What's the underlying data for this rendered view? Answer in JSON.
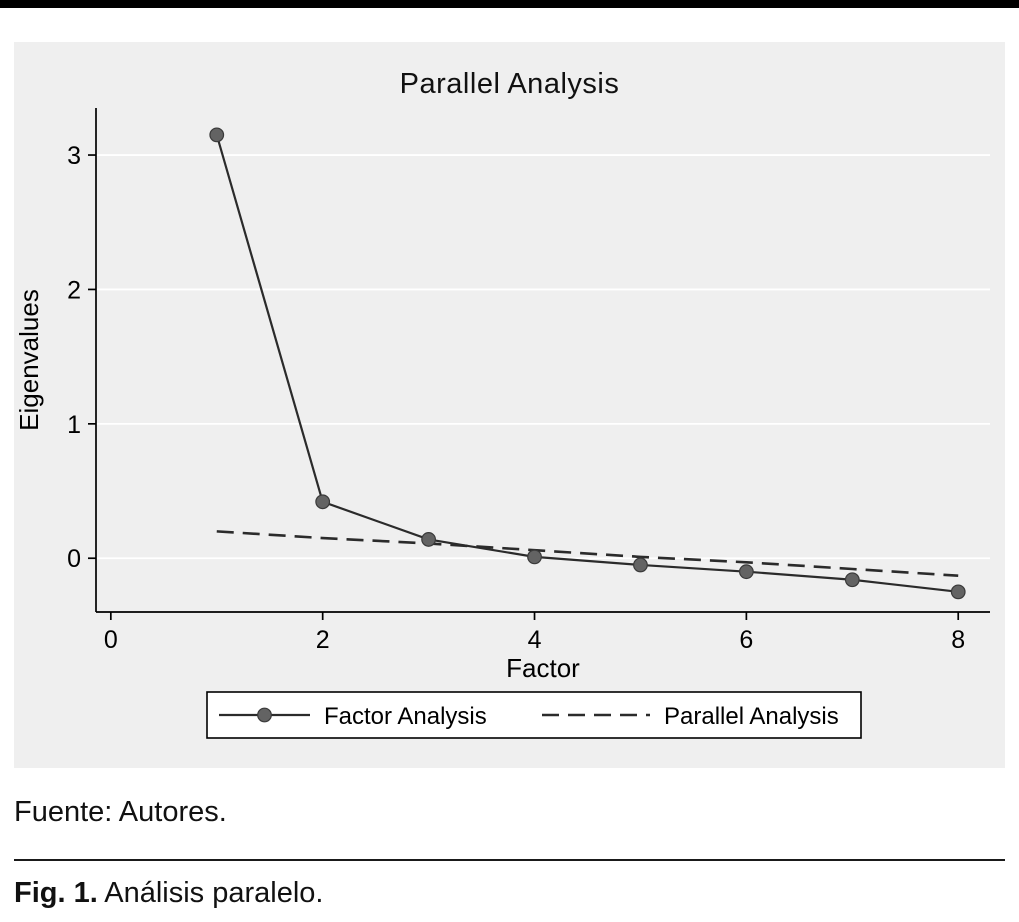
{
  "figure": {
    "source_note": "Fuente: Autores.",
    "fig_label": "Fig. 1.",
    "fig_caption": " Análisis paralelo."
  },
  "chart_data": {
    "type": "line",
    "title": "Parallel Analysis",
    "xlabel": "Factor",
    "ylabel": "Eigenvalues",
    "x": [
      1,
      2,
      3,
      4,
      5,
      6,
      7,
      8
    ],
    "series": [
      {
        "name": "Factor Analysis",
        "line": "solid",
        "marker": "circle",
        "values": [
          3.15,
          0.42,
          0.14,
          0.01,
          -0.05,
          -0.1,
          -0.16,
          -0.25
        ]
      },
      {
        "name": "Parallel Analysis",
        "line": "dashed",
        "marker": "none",
        "values": [
          0.2,
          0.15,
          0.11,
          0.06,
          0.01,
          -0.03,
          -0.08,
          -0.13
        ]
      }
    ],
    "xticks": [
      0,
      2,
      4,
      6,
      8
    ],
    "yticks": [
      0,
      1,
      2,
      3
    ],
    "xlim": [
      -0.14,
      8.3
    ],
    "ylim": [
      -0.4,
      3.35
    ],
    "grid": "horizontal",
    "legend_position": "bottom",
    "colors": {
      "plot_bg": "#efefef",
      "line": "#2b2b2b",
      "marker_fill": "#636363",
      "marker_edge": "#3a3a3a",
      "grid": "#ffffff",
      "axis": "#000000",
      "legend_bg": "#ffffff",
      "legend_border": "#000000"
    }
  }
}
